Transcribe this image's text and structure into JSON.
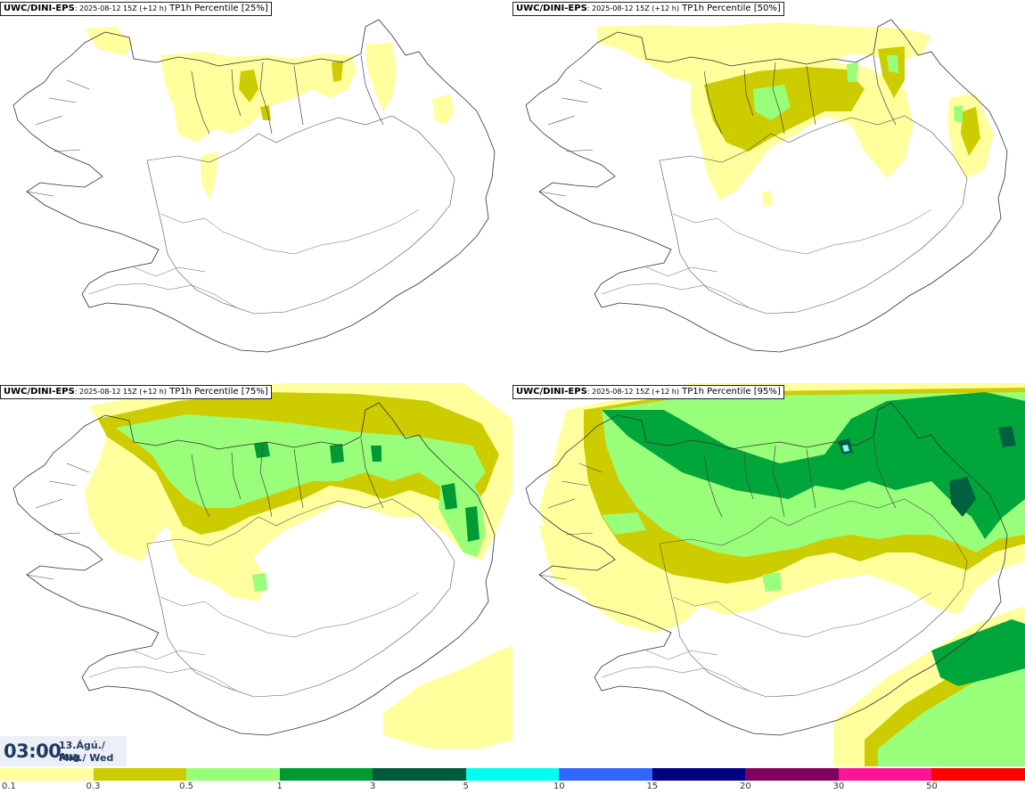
{
  "panels": [
    {
      "model": "UWC/DINI-EPS",
      "run": ": 2025-08-12 15Z (+12 h)",
      "field": " TP1h Percentile [25%]"
    },
    {
      "model": "UWC/DINI-EPS",
      "run": ": 2025-08-12 15Z (+12 h)",
      "field": " TP1h Percentile [50%]"
    },
    {
      "model": "UWC/DINI-EPS",
      "run": ": 2025-08-12 15Z (+12 h)",
      "field": " TP1h Percentile [75%]"
    },
    {
      "model": "UWC/DINI-EPS",
      "run": ": 2025-08-12 15Z (+12 h)",
      "field": " TP1h Percentile [95%]"
    }
  ],
  "valid_time": {
    "time": "03:00",
    "date_line1": "13.Ágú./ Aug",
    "date_line2": "Mið./ Wed"
  },
  "legend": {
    "ticks": [
      "0.1",
      "0.3",
      "0.5",
      "1",
      "3",
      "5",
      "10",
      "15",
      "20",
      "30",
      "50"
    ],
    "colors": [
      "#ffff9e",
      "#cccc00",
      "#99ff7a",
      "#009933",
      "#005a3c",
      "#00ffee",
      "#3366ff",
      "#000080",
      "#800060",
      "#ff1493",
      "#ff0000"
    ]
  },
  "precip_colors": {
    "light": "#ffff9e",
    "olive": "#cccc00",
    "lightgreen": "#99ff7a",
    "green": "#00a63a",
    "darkgreen": "#006040",
    "cyan": "#7afff0"
  }
}
